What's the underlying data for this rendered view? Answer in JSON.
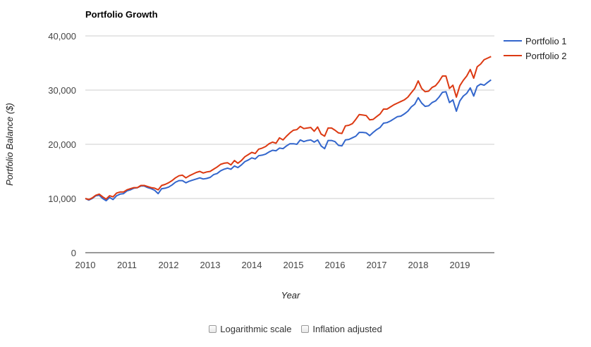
{
  "chart_data": {
    "type": "line",
    "title": "Portfolio Growth",
    "xlabel": "Year",
    "ylabel": "Portfolio Balance ($)",
    "x_ticks": [
      "2010",
      "2011",
      "2012",
      "2013",
      "2014",
      "2015",
      "2016",
      "2017",
      "2018",
      "2019"
    ],
    "y_ticks": [
      {
        "value": 0,
        "label": "0"
      },
      {
        "value": 10000,
        "label": "10,000"
      },
      {
        "value": 20000,
        "label": "20,000"
      },
      {
        "value": 30000,
        "label": "30,000"
      },
      {
        "value": 40000,
        "label": "40,000"
      }
    ],
    "xlim": [
      "2010-01",
      "2019-12"
    ],
    "ylim": [
      0,
      40000
    ],
    "grid": true,
    "legend_position": "right",
    "series": [
      {
        "name": "Portfolio 1",
        "color": "#3366cc",
        "points": [
          [
            "2010-01",
            10000
          ],
          [
            "2010-02",
            9700
          ],
          [
            "2010-03",
            10000
          ],
          [
            "2010-04",
            10500
          ],
          [
            "2010-05",
            10600
          ],
          [
            "2010-06",
            10000
          ],
          [
            "2010-07",
            9600
          ],
          [
            "2010-08",
            10200
          ],
          [
            "2010-09",
            9800
          ],
          [
            "2010-10",
            10500
          ],
          [
            "2010-11",
            10800
          ],
          [
            "2010-12",
            10900
          ],
          [
            "2011-01",
            11400
          ],
          [
            "2011-02",
            11600
          ],
          [
            "2011-03",
            11900
          ],
          [
            "2011-04",
            12000
          ],
          [
            "2011-05",
            12300
          ],
          [
            "2011-06",
            12300
          ],
          [
            "2011-07",
            12000
          ],
          [
            "2011-08",
            11800
          ],
          [
            "2011-09",
            11500
          ],
          [
            "2011-10",
            10900
          ],
          [
            "2011-11",
            11800
          ],
          [
            "2011-12",
            11900
          ],
          [
            "2012-01",
            12100
          ],
          [
            "2012-02",
            12500
          ],
          [
            "2012-03",
            13000
          ],
          [
            "2012-04",
            13300
          ],
          [
            "2012-05",
            13300
          ],
          [
            "2012-06",
            12900
          ],
          [
            "2012-07",
            13200
          ],
          [
            "2012-08",
            13400
          ],
          [
            "2012-09",
            13600
          ],
          [
            "2012-10",
            13800
          ],
          [
            "2012-11",
            13600
          ],
          [
            "2012-12",
            13700
          ],
          [
            "2013-01",
            13900
          ],
          [
            "2013-02",
            14400
          ],
          [
            "2013-03",
            14600
          ],
          [
            "2013-04",
            15100
          ],
          [
            "2013-05",
            15400
          ],
          [
            "2013-06",
            15600
          ],
          [
            "2013-07",
            15400
          ],
          [
            "2013-08",
            16000
          ],
          [
            "2013-09",
            15700
          ],
          [
            "2013-10",
            16200
          ],
          [
            "2013-11",
            16800
          ],
          [
            "2013-12",
            17100
          ],
          [
            "2014-01",
            17500
          ],
          [
            "2014-02",
            17300
          ],
          [
            "2014-03",
            17900
          ],
          [
            "2014-04",
            18000
          ],
          [
            "2014-05",
            18200
          ],
          [
            "2014-06",
            18600
          ],
          [
            "2014-07",
            18900
          ],
          [
            "2014-08",
            18800
          ],
          [
            "2014-09",
            19300
          ],
          [
            "2014-10",
            19200
          ],
          [
            "2014-11",
            19700
          ],
          [
            "2014-12",
            20100
          ],
          [
            "2015-01",
            20100
          ],
          [
            "2015-02",
            20000
          ],
          [
            "2015-03",
            20800
          ],
          [
            "2015-04",
            20500
          ],
          [
            "2015-05",
            20700
          ],
          [
            "2015-06",
            20800
          ],
          [
            "2015-07",
            20400
          ],
          [
            "2015-08",
            20800
          ],
          [
            "2015-09",
            19700
          ],
          [
            "2015-10",
            19200
          ],
          [
            "2015-11",
            20700
          ],
          [
            "2015-12",
            20700
          ],
          [
            "2016-01",
            20500
          ],
          [
            "2016-02",
            19800
          ],
          [
            "2016-03",
            19700
          ],
          [
            "2016-04",
            20800
          ],
          [
            "2016-05",
            20900
          ],
          [
            "2016-06",
            21200
          ],
          [
            "2016-07",
            21500
          ],
          [
            "2016-08",
            22200
          ],
          [
            "2016-09",
            22200
          ],
          [
            "2016-10",
            22100
          ],
          [
            "2016-11",
            21600
          ],
          [
            "2016-12",
            22200
          ],
          [
            "2017-01",
            22700
          ],
          [
            "2017-02",
            23100
          ],
          [
            "2017-03",
            23900
          ],
          [
            "2017-04",
            24000
          ],
          [
            "2017-05",
            24300
          ],
          [
            "2017-06",
            24700
          ],
          [
            "2017-07",
            25100
          ],
          [
            "2017-08",
            25200
          ],
          [
            "2017-09",
            25600
          ],
          [
            "2017-10",
            26100
          ],
          [
            "2017-11",
            26900
          ],
          [
            "2017-12",
            27400
          ],
          [
            "2018-01",
            28600
          ],
          [
            "2018-02",
            27600
          ],
          [
            "2018-03",
            27000
          ],
          [
            "2018-04",
            27100
          ],
          [
            "2018-05",
            27700
          ],
          [
            "2018-06",
            28000
          ],
          [
            "2018-07",
            28700
          ],
          [
            "2018-08",
            29600
          ],
          [
            "2018-09",
            29700
          ],
          [
            "2018-10",
            27700
          ],
          [
            "2018-11",
            28200
          ],
          [
            "2018-12",
            26100
          ],
          [
            "2019-01",
            28000
          ],
          [
            "2019-02",
            28900
          ],
          [
            "2019-03",
            29400
          ],
          [
            "2019-04",
            30400
          ],
          [
            "2019-05",
            28900
          ],
          [
            "2019-06",
            30700
          ],
          [
            "2019-07",
            31100
          ],
          [
            "2019-08",
            30900
          ],
          [
            "2019-09",
            31400
          ],
          [
            "2019-10",
            31900
          ]
        ]
      },
      {
        "name": "Portfolio 2",
        "color": "#dc3912",
        "points": [
          [
            "2010-01",
            10000
          ],
          [
            "2010-02",
            9800
          ],
          [
            "2010-03",
            10100
          ],
          [
            "2010-04",
            10600
          ],
          [
            "2010-05",
            10800
          ],
          [
            "2010-06",
            10300
          ],
          [
            "2010-07",
            9900
          ],
          [
            "2010-08",
            10500
          ],
          [
            "2010-09",
            10300
          ],
          [
            "2010-10",
            11000
          ],
          [
            "2010-11",
            11200
          ],
          [
            "2010-12",
            11200
          ],
          [
            "2011-01",
            11600
          ],
          [
            "2011-02",
            11800
          ],
          [
            "2011-03",
            12000
          ],
          [
            "2011-04",
            12000
          ],
          [
            "2011-05",
            12400
          ],
          [
            "2011-06",
            12400
          ],
          [
            "2011-07",
            12200
          ],
          [
            "2011-08",
            12000
          ],
          [
            "2011-09",
            11900
          ],
          [
            "2011-10",
            11600
          ],
          [
            "2011-11",
            12400
          ],
          [
            "2011-12",
            12600
          ],
          [
            "2012-01",
            12900
          ],
          [
            "2012-02",
            13300
          ],
          [
            "2012-03",
            13800
          ],
          [
            "2012-04",
            14200
          ],
          [
            "2012-05",
            14300
          ],
          [
            "2012-06",
            13800
          ],
          [
            "2012-07",
            14200
          ],
          [
            "2012-08",
            14500
          ],
          [
            "2012-09",
            14800
          ],
          [
            "2012-10",
            15000
          ],
          [
            "2012-11",
            14700
          ],
          [
            "2012-12",
            14900
          ],
          [
            "2013-01",
            15000
          ],
          [
            "2013-02",
            15400
          ],
          [
            "2013-03",
            15800
          ],
          [
            "2013-04",
            16300
          ],
          [
            "2013-05",
            16500
          ],
          [
            "2013-06",
            16600
          ],
          [
            "2013-07",
            16200
          ],
          [
            "2013-08",
            17000
          ],
          [
            "2013-09",
            16500
          ],
          [
            "2013-10",
            17000
          ],
          [
            "2013-11",
            17700
          ],
          [
            "2013-12",
            18100
          ],
          [
            "2014-01",
            18500
          ],
          [
            "2014-02",
            18300
          ],
          [
            "2014-03",
            19100
          ],
          [
            "2014-04",
            19300
          ],
          [
            "2014-05",
            19600
          ],
          [
            "2014-06",
            20100
          ],
          [
            "2014-07",
            20400
          ],
          [
            "2014-08",
            20200
          ],
          [
            "2014-09",
            21200
          ],
          [
            "2014-10",
            20800
          ],
          [
            "2014-11",
            21500
          ],
          [
            "2014-12",
            22100
          ],
          [
            "2015-01",
            22600
          ],
          [
            "2015-02",
            22700
          ],
          [
            "2015-03",
            23300
          ],
          [
            "2015-04",
            22900
          ],
          [
            "2015-05",
            23000
          ],
          [
            "2015-06",
            23100
          ],
          [
            "2015-07",
            22400
          ],
          [
            "2015-08",
            23200
          ],
          [
            "2015-09",
            21900
          ],
          [
            "2015-10",
            21500
          ],
          [
            "2015-11",
            23000
          ],
          [
            "2015-12",
            23000
          ],
          [
            "2016-01",
            22600
          ],
          [
            "2016-02",
            22100
          ],
          [
            "2016-03",
            22000
          ],
          [
            "2016-04",
            23400
          ],
          [
            "2016-05",
            23500
          ],
          [
            "2016-06",
            23800
          ],
          [
            "2016-07",
            24600
          ],
          [
            "2016-08",
            25500
          ],
          [
            "2016-09",
            25400
          ],
          [
            "2016-10",
            25300
          ],
          [
            "2016-11",
            24500
          ],
          [
            "2016-12",
            24600
          ],
          [
            "2017-01",
            25100
          ],
          [
            "2017-02",
            25600
          ],
          [
            "2017-03",
            26500
          ],
          [
            "2017-04",
            26500
          ],
          [
            "2017-05",
            26900
          ],
          [
            "2017-06",
            27300
          ],
          [
            "2017-07",
            27600
          ],
          [
            "2017-08",
            27900
          ],
          [
            "2017-09",
            28200
          ],
          [
            "2017-10",
            28700
          ],
          [
            "2017-11",
            29500
          ],
          [
            "2017-12",
            30300
          ],
          [
            "2018-01",
            31700
          ],
          [
            "2018-02",
            30300
          ],
          [
            "2018-03",
            29700
          ],
          [
            "2018-04",
            29800
          ],
          [
            "2018-05",
            30500
          ],
          [
            "2018-06",
            30800
          ],
          [
            "2018-07",
            31600
          ],
          [
            "2018-08",
            32600
          ],
          [
            "2018-09",
            32600
          ],
          [
            "2018-10",
            30300
          ],
          [
            "2018-11",
            30900
          ],
          [
            "2018-12",
            28700
          ],
          [
            "2019-01",
            30800
          ],
          [
            "2019-02",
            31800
          ],
          [
            "2019-03",
            32600
          ],
          [
            "2019-04",
            33800
          ],
          [
            "2019-05",
            32200
          ],
          [
            "2019-06",
            34300
          ],
          [
            "2019-07",
            34800
          ],
          [
            "2019-08",
            35600
          ],
          [
            "2019-09",
            35900
          ],
          [
            "2019-10",
            36200
          ]
        ]
      }
    ]
  },
  "controls": {
    "log_scale_label": "Logarithmic scale",
    "inflation_label": "Inflation adjusted",
    "log_scale_checked": false,
    "inflation_checked": false
  }
}
